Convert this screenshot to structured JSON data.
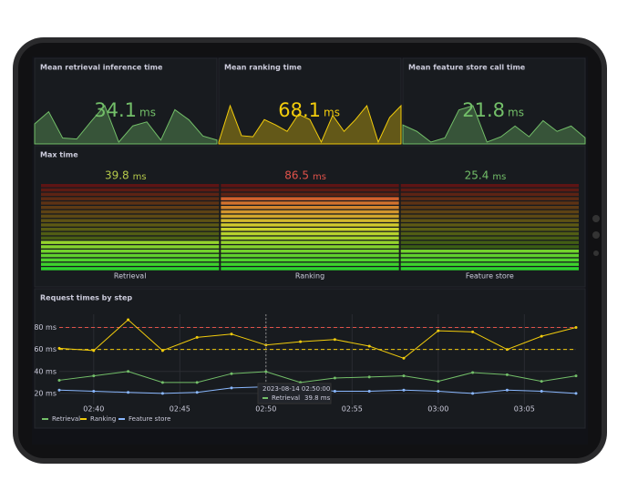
{
  "chart_data": [
    {
      "type": "stat",
      "title": "Mean retrieval inference time",
      "value": 34.1,
      "unit": "ms",
      "color": "#73bf69",
      "values": [
        22,
        34,
        8,
        7,
        24,
        40,
        4,
        20,
        24,
        6,
        36,
        26,
        10,
        6
      ]
    },
    {
      "type": "stat",
      "title": "Mean ranking time",
      "value": 68.1,
      "unit": "ms",
      "color": "#f2cc0c",
      "values": [
        6,
        40,
        12,
        11,
        27,
        22,
        16,
        32,
        27,
        6,
        31,
        16,
        27,
        40,
        6,
        29,
        40
      ]
    },
    {
      "type": "stat",
      "title": "Mean feature store call time",
      "value": 21.8,
      "unit": "ms",
      "color": "#73bf69",
      "values": [
        22,
        16,
        6,
        10,
        36,
        40,
        6,
        11,
        21,
        11,
        26,
        16,
        21,
        10
      ]
    },
    {
      "type": "bargauge",
      "title": "Max time",
      "unit": "ms",
      "categories": [
        "Retrieval",
        "Ranking",
        "Feature store"
      ],
      "values": [
        39.8,
        86.5,
        25.4
      ],
      "value_colors": [
        "#b5c94a",
        "#e0524a",
        "#73bf69"
      ],
      "ylim": [
        0,
        100
      ]
    },
    {
      "type": "line",
      "title": "Request times by step",
      "x": [
        "02:38",
        "02:40",
        "02:42",
        "02:44",
        "02:46",
        "02:48",
        "02:50",
        "02:52",
        "02:54",
        "02:56",
        "02:58",
        "03:00",
        "03:02",
        "03:04",
        "03:06",
        "03:08"
      ],
      "xlim": [
        "02:38",
        "03:08"
      ],
      "xticks": [
        "02:40",
        "02:45",
        "02:50",
        "02:55",
        "03:00",
        "03:05"
      ],
      "ylim": [
        10,
        92
      ],
      "yticks": [
        {
          "value": 20,
          "label": "20 ms"
        },
        {
          "value": 40,
          "label": "40 ms"
        },
        {
          "value": 60,
          "label": "60 ms"
        },
        {
          "value": 80,
          "label": "80 ms"
        }
      ],
      "thresholds": [
        {
          "value": 80,
          "color": "#e0524a"
        },
        {
          "value": 60,
          "color": "#f2cc0c"
        }
      ],
      "grid": true,
      "series": [
        {
          "name": "Retrieval",
          "color": "#73bf69",
          "values": [
            32,
            36,
            40,
            30,
            30,
            38,
            39.8,
            30,
            34,
            35,
            36,
            31,
            39,
            37,
            31,
            36
          ]
        },
        {
          "name": "Ranking",
          "color": "#f2cc0c",
          "values": [
            61,
            59,
            87,
            59,
            71,
            74,
            64,
            67,
            69,
            63,
            52,
            77,
            76,
            60,
            72,
            80
          ]
        },
        {
          "name": "Feature store",
          "color": "#8ab8ff",
          "values": [
            23,
            22,
            21,
            20,
            21,
            25,
            26,
            25,
            22,
            22,
            23,
            22,
            20,
            23,
            22,
            20
          ]
        }
      ],
      "tooltip": {
        "time": "2023-08-14 02:50:00",
        "series": "Retrieval",
        "label": "39.8 ms"
      }
    }
  ]
}
